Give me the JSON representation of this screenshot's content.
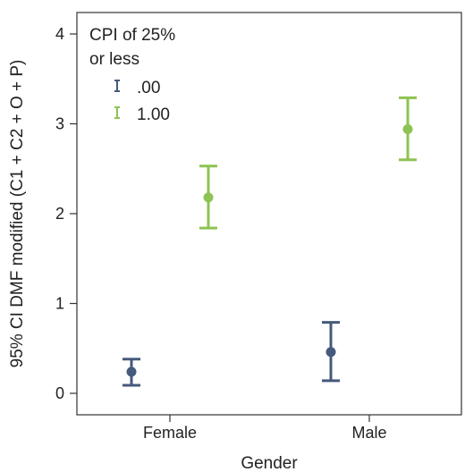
{
  "chart_data": {
    "type": "errorbar",
    "xlabel": "Gender",
    "ylabel": "95% CI DMF modified (C1 + C2 + O + P)",
    "categories": [
      "Female",
      "Male"
    ],
    "ylim": [
      -0.2,
      4.2
    ],
    "yticks": [
      0,
      1,
      2,
      3,
      4
    ],
    "grid": false,
    "legend": {
      "title_line1": "CPI of 25%",
      "title_line2": "or less",
      "placement": "top-left"
    },
    "series": [
      {
        "name": ".00",
        "color": "#455a7c",
        "points": [
          {
            "category": "Female",
            "mean": 0.24,
            "lower": 0.09,
            "upper": 0.38
          },
          {
            "category": "Male",
            "mean": 0.46,
            "lower": 0.14,
            "upper": 0.79
          }
        ]
      },
      {
        "name": "1.00",
        "color": "#8dc353",
        "points": [
          {
            "category": "Female",
            "mean": 2.18,
            "lower": 1.84,
            "upper": 2.53
          },
          {
            "category": "Male",
            "mean": 2.94,
            "lower": 2.6,
            "upper": 3.29
          }
        ]
      }
    ]
  }
}
